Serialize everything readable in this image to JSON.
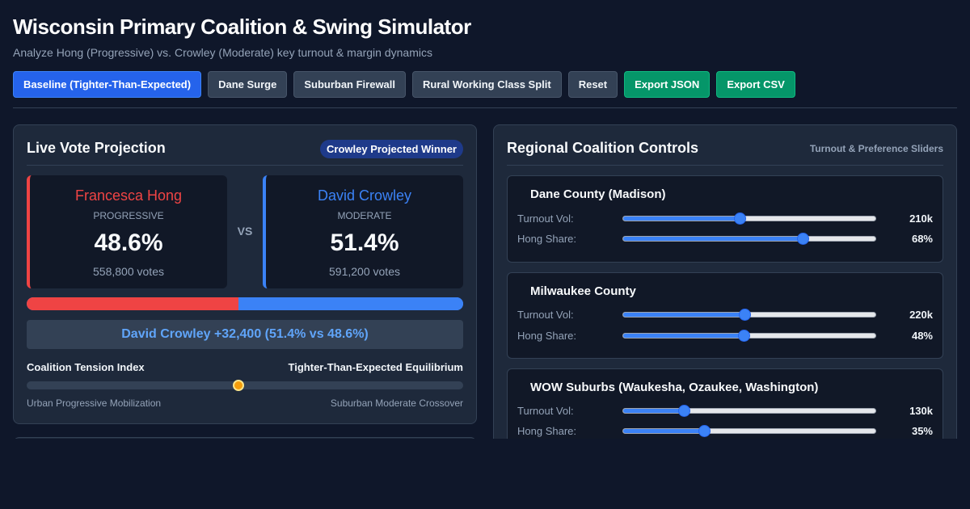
{
  "header": {
    "title": "Wisconsin Primary Coalition & Swing Simulator",
    "subtitle": "Analyze Hong (Progressive) vs. Crowley (Moderate) key turnout & margin dynamics"
  },
  "toolbar": {
    "buttons": [
      {
        "label": "Baseline (Tighter-Than-Expected)",
        "active": true
      },
      {
        "label": "Dane Surge"
      },
      {
        "label": "Suburban Firewall"
      },
      {
        "label": "Rural Working Class Split"
      },
      {
        "label": "Reset"
      },
      {
        "label": "Export JSON"
      },
      {
        "label": "Export CSV"
      }
    ]
  },
  "projection": {
    "title": "Live Vote Projection",
    "badge": "Crowley Projected Winner",
    "vs": "VS",
    "hong": {
      "name": "Francesca Hong",
      "party": "Progressive",
      "pct": "48.6%",
      "votes": "558,800 votes",
      "share": 48.6
    },
    "crowley": {
      "name": "David Crowley",
      "party": "Moderate",
      "pct": "51.4%",
      "votes": "591,200 votes",
      "share": 51.4
    },
    "margin_text": "David Crowley +32,400 (51.4% vs 48.6%)",
    "tension": {
      "label": "Coalition Tension Index",
      "state": "Tighter-Than-Expected Equilibrium",
      "value": 0.485,
      "left_label": "Urban Progressive Mobilization",
      "right_label": "Suburban Moderate Crossover"
    }
  },
  "controls": {
    "title": "Regional Coalition Controls",
    "note": "Turnout & Preference Sliders",
    "regions": [
      {
        "name": "Dane County (Madison)",
        "turnout_label": "Turnout Vol:",
        "turnout_value": "210k",
        "turnout_level": 0.46,
        "share_label": "Hong Share:",
        "share_value": "68%",
        "share_level": 0.71
      },
      {
        "name": "Milwaukee County",
        "turnout_label": "Turnout Vol:",
        "turnout_value": "220k",
        "turnout_level": 0.48,
        "share_label": "Hong Share:",
        "share_value": "48%",
        "share_level": 0.477
      },
      {
        "name": "WOW Suburbs (Waukesha, Ozaukee, Washington)",
        "turnout_label": "Turnout Vol:",
        "turnout_value": "130k",
        "turnout_level": 0.24,
        "share_label": "Hong Share:",
        "share_value": "35%",
        "share_level": 0.32
      }
    ]
  },
  "colors": {
    "hong": "#ef4444",
    "crowley": "#3b82f6",
    "accent": "#2563eb",
    "export": "#059669",
    "tension_marker": "#f59e0b"
  }
}
